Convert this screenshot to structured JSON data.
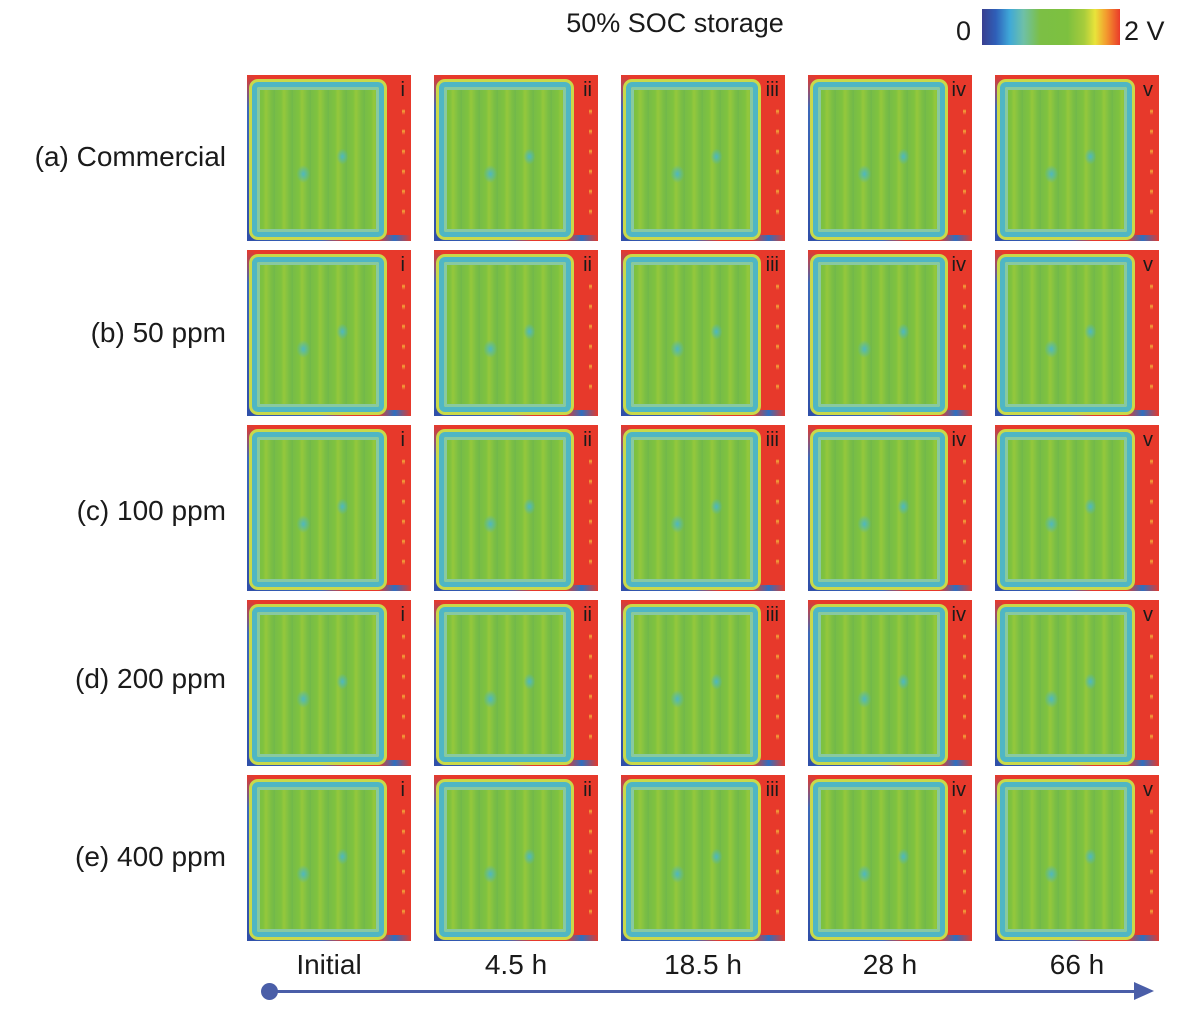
{
  "figure": {
    "title": "50% SOC storage",
    "colorbar": {
      "min_label": "0",
      "max_label": "2 V",
      "colors": [
        "#3a3f8f",
        "#3fa8d8",
        "#7cbf45",
        "#e9e33a",
        "#ea3b2a"
      ]
    },
    "rows": [
      {
        "label": "(a) Commercial"
      },
      {
        "label": "(b) 50 ppm"
      },
      {
        "label": "(c) 100 ppm"
      },
      {
        "label": "(d) 200 ppm"
      },
      {
        "label": "(e) 400 ppm"
      }
    ],
    "panel_markers": [
      "i",
      "ii",
      "iii",
      "iv",
      "v"
    ],
    "time_points": [
      "Initial",
      "4.5 h",
      "18.5 h",
      "28 h",
      "66 h"
    ],
    "arrow_color": "#4a5ea8"
  }
}
